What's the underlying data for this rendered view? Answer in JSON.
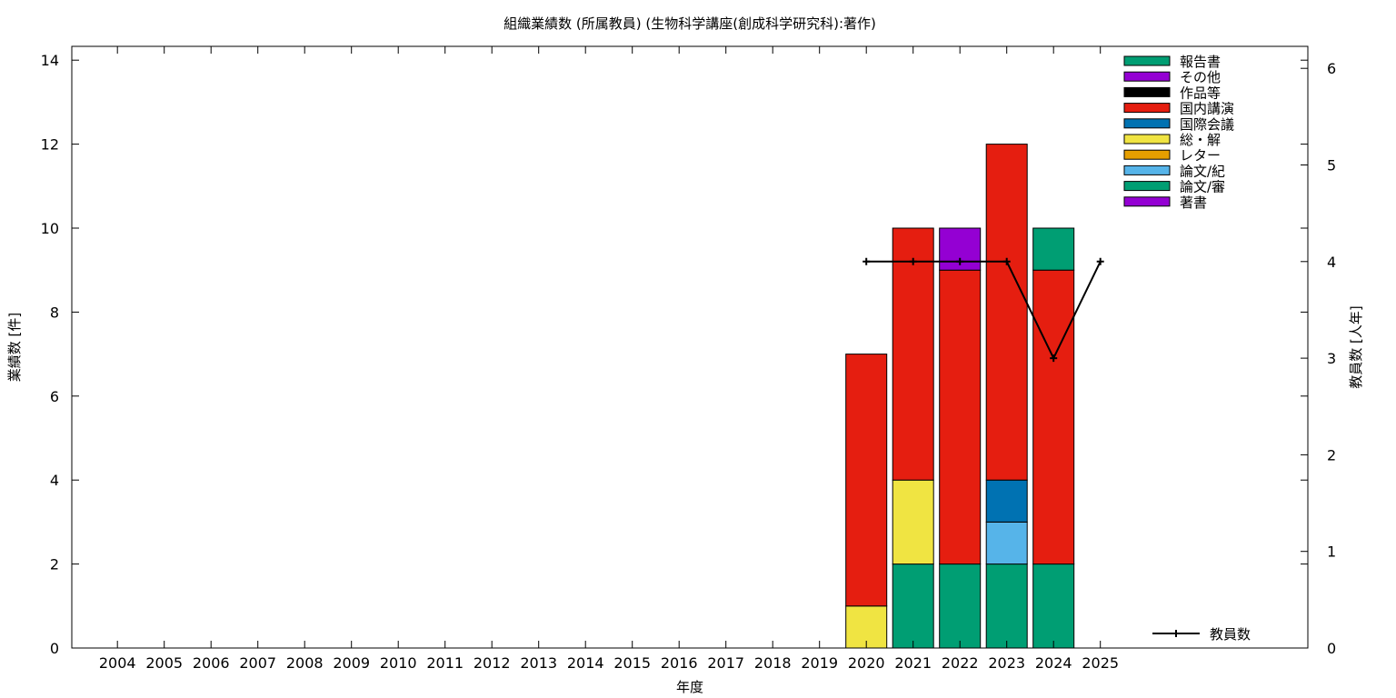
{
  "chart_data": {
    "type": "bar",
    "title": "組織業績数 (所属教員) (生物科学講座(創成科学研究科):著作)",
    "xlabel": "年度",
    "ylabel": "業績数 [件]",
    "y2label": "教員数 [人年]",
    "ylim": [
      0,
      14
    ],
    "yticks": [
      0,
      2,
      4,
      6,
      8,
      10,
      12,
      14
    ],
    "y2lim": [
      0,
      6.2
    ],
    "y2ticks": [
      0,
      1,
      2,
      3,
      4,
      5,
      6
    ],
    "legend_position": "top-right",
    "categories": [
      "2004",
      "2005",
      "2006",
      "2007",
      "2008",
      "2009",
      "2010",
      "2011",
      "2012",
      "2013",
      "2014",
      "2015",
      "2016",
      "2017",
      "2018",
      "2019",
      "2020",
      "2021",
      "2022",
      "2023",
      "2024",
      "2025"
    ],
    "series": [
      {
        "name": "論文/審",
        "color": "#009e73",
        "values": [
          0,
          0,
          0,
          0,
          0,
          0,
          0,
          0,
          0,
          0,
          0,
          0,
          0,
          0,
          0,
          0,
          0,
          2,
          2,
          2,
          2,
          0
        ]
      },
      {
        "name": "論文/紀",
        "color": "#56b4e9",
        "values": [
          0,
          0,
          0,
          0,
          0,
          0,
          0,
          0,
          0,
          0,
          0,
          0,
          0,
          0,
          0,
          0,
          0,
          0,
          0,
          1,
          0,
          0
        ]
      },
      {
        "name": "総・解",
        "color": "#f0e442",
        "values": [
          0,
          0,
          0,
          0,
          0,
          0,
          0,
          0,
          0,
          0,
          0,
          0,
          0,
          0,
          0,
          0,
          1,
          2,
          0,
          0,
          0,
          0
        ]
      },
      {
        "name": "国際会議",
        "color": "#0072b2",
        "values": [
          0,
          0,
          0,
          0,
          0,
          0,
          0,
          0,
          0,
          0,
          0,
          0,
          0,
          0,
          0,
          0,
          0,
          0,
          0,
          1,
          0,
          0
        ]
      },
      {
        "name": "国内講演",
        "color": "#e51e10",
        "values": [
          0,
          0,
          0,
          0,
          0,
          0,
          0,
          0,
          0,
          0,
          0,
          0,
          0,
          0,
          0,
          0,
          6,
          6,
          7,
          8,
          7,
          0
        ]
      },
      {
        "name": "報告書",
        "color": "#009e73",
        "values": [
          0,
          0,
          0,
          0,
          0,
          0,
          0,
          0,
          0,
          0,
          0,
          0,
          0,
          0,
          0,
          0,
          0,
          0,
          0,
          0,
          1,
          0
        ]
      },
      {
        "name": "その他",
        "color": "#9400d3",
        "values": [
          0,
          0,
          0,
          0,
          0,
          0,
          0,
          0,
          0,
          0,
          0,
          0,
          0,
          0,
          0,
          0,
          0,
          0,
          1,
          0,
          0,
          0
        ]
      }
    ],
    "legend": [
      {
        "name": "報告書",
        "color": "#009e73"
      },
      {
        "name": "その他",
        "color": "#9400d3"
      },
      {
        "name": "作品等",
        "color": "#000000"
      },
      {
        "name": "国内講演",
        "color": "#e51e10"
      },
      {
        "name": "国際会議",
        "color": "#0072b2"
      },
      {
        "name": "総・解",
        "color": "#f0e442"
      },
      {
        "name": "レター",
        "color": "#e69f00"
      },
      {
        "name": "論文/紀",
        "color": "#56b4e9"
      },
      {
        "name": "論文/審",
        "color": "#009e73"
      },
      {
        "name": "著書",
        "color": "#9400d3"
      }
    ],
    "line_series": {
      "name": "教員数",
      "axis": "y2",
      "color": "#000000",
      "x": [
        "2020",
        "2021",
        "2022",
        "2023",
        "2024",
        "2025"
      ],
      "values": [
        4,
        4,
        4,
        4,
        3,
        4
      ]
    }
  }
}
